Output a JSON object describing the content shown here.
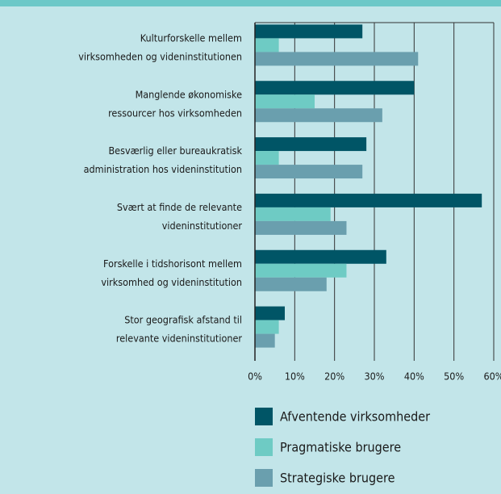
{
  "chart_data": {
    "type": "bar",
    "orientation": "horizontal",
    "categories": [
      "Kulturforskelle mellem\nvirksomheden og videninstitutionen",
      "Manglende økonomiske\nressourcer hos virksomheden",
      "Besværlig eller bureaukratisk\nadministration hos videninstitution",
      "Svært at finde de relevante\nvideninstitutioner",
      "Forskelle i tidshorisont mellem\nvirksomhed og videninstitution",
      "Stor geografisk afstand til\nrelevante videninstitutioner"
    ],
    "series": [
      {
        "name": "Afventende virksomheder",
        "color": "#005566",
        "values": [
          27,
          40,
          28,
          57,
          33,
          7.5
        ]
      },
      {
        "name": "Pragmatiske brugere",
        "color": "#6ecbc4",
        "values": [
          6,
          15,
          6,
          19,
          23,
          6
        ]
      },
      {
        "name": "Strategiske brugere",
        "color": "#6a9fae",
        "values": [
          41,
          32,
          27,
          23,
          18,
          5
        ]
      }
    ],
    "xlim": [
      0,
      60
    ],
    "xticks": [
      {
        "value": 0,
        "label": "0%"
      },
      {
        "value": 10,
        "label": "10%"
      },
      {
        "value": 20,
        "label": "20%"
      },
      {
        "value": 30,
        "label": "30%"
      },
      {
        "value": 40,
        "label": "40%"
      },
      {
        "value": 50,
        "label": "50%"
      },
      {
        "value": 60,
        "label": "60%"
      }
    ],
    "grid": true
  }
}
